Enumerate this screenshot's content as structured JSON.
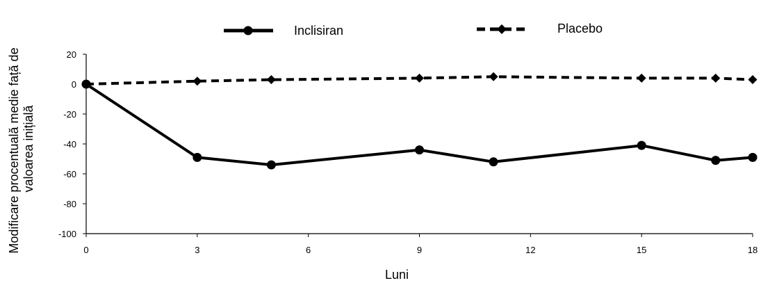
{
  "chart_data": {
    "type": "line",
    "title": "",
    "xlabel": "Luni",
    "ylabel": "Modificare procentuală medie față de valoarea inițială",
    "ylabel_lines": [
      "Modificare procentuală medie față de",
      "valoarea inițială"
    ],
    "xlim": [
      0,
      18
    ],
    "ylim": [
      -100,
      20
    ],
    "x_ticks": [
      0,
      3,
      6,
      9,
      12,
      15,
      18
    ],
    "y_ticks": [
      20,
      0,
      -20,
      -40,
      -60,
      -80,
      -100
    ],
    "x_tick_labels": [
      "0",
      "3",
      "6",
      "9",
      "12",
      "15",
      "18"
    ],
    "y_tick_labels": [
      "20",
      "0",
      "-20",
      "-40",
      "-60",
      "-80",
      "-100"
    ],
    "grid": false,
    "legend_placement": "top",
    "series": [
      {
        "name": "Inclisiran",
        "style": "solid",
        "marker": "circle",
        "color": "#000000",
        "x": [
          0,
          3,
          5,
          9,
          11,
          15,
          17,
          18
        ],
        "y": [
          0,
          -49,
          -54,
          -44,
          -52,
          -41,
          -51,
          -49
        ]
      },
      {
        "name": "Placebo",
        "style": "dashed",
        "marker": "diamond",
        "color": "#000000",
        "x": [
          0,
          3,
          5,
          9,
          11,
          15,
          17,
          18
        ],
        "y": [
          0,
          2,
          3,
          4,
          5,
          4,
          4,
          3
        ]
      }
    ]
  }
}
